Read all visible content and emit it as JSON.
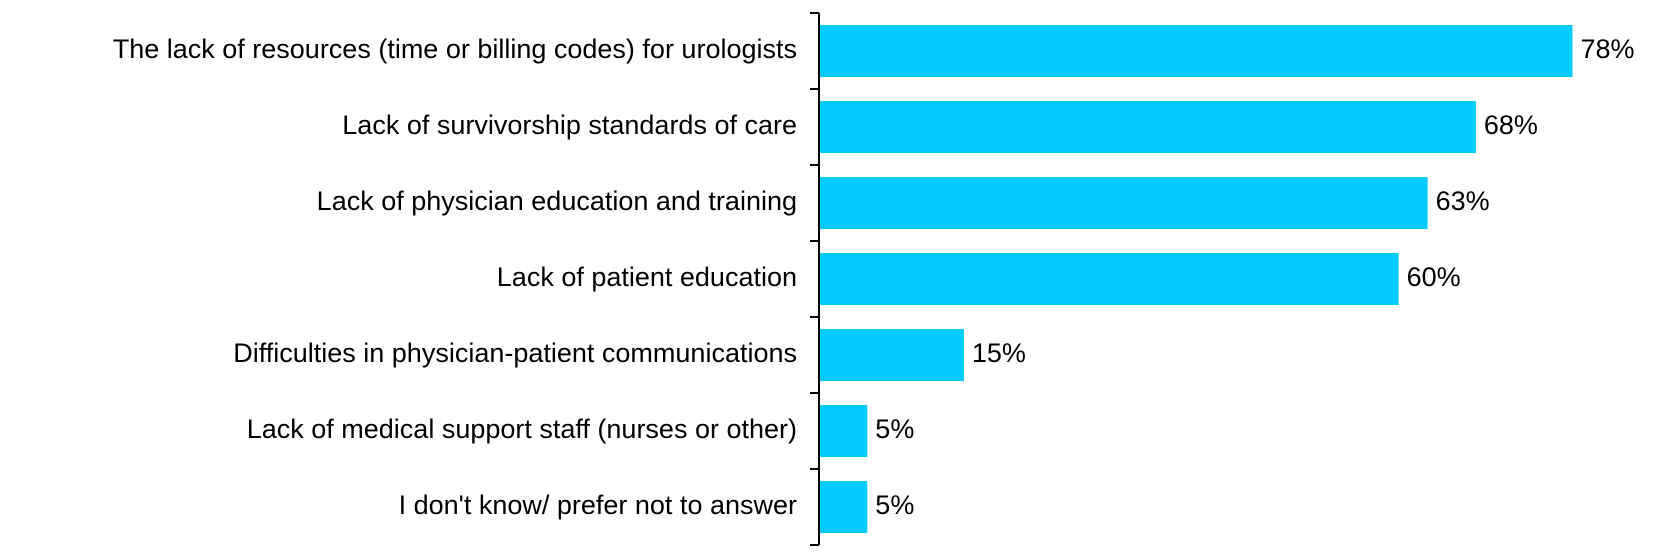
{
  "chart_data": {
    "type": "hbar",
    "categories": [
      "The lack of resources (time or billing codes) for urologists",
      "Lack of survivorship standards of care",
      "Lack of physician education and training",
      "Lack of patient education",
      "Difficulties in physician-patient communications",
      "Lack of medical support staff (nurses or other)",
      "I don't know/ prefer not to answer"
    ],
    "values": [
      78,
      68,
      63,
      60,
      15,
      5,
      5
    ],
    "value_labels": [
      "78%",
      "68%",
      "63%",
      "60%",
      "15%",
      "5%",
      "5%"
    ],
    "color": "#00ccff"
  }
}
